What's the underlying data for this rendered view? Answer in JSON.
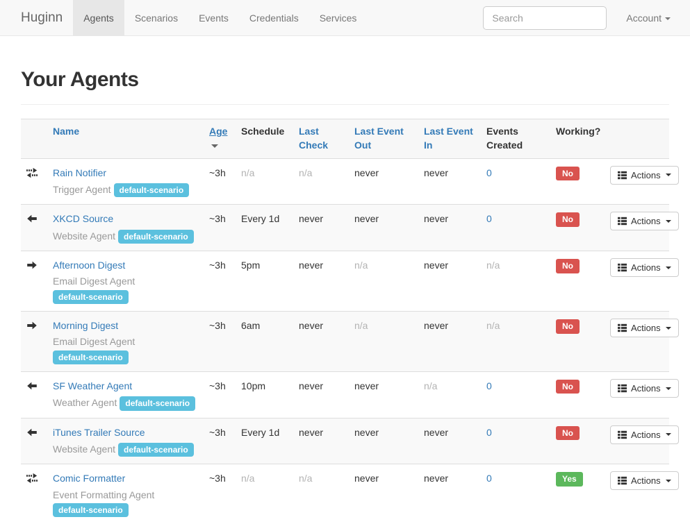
{
  "navbar": {
    "brand": "Huginn",
    "items": [
      {
        "label": "Agents",
        "active": true
      },
      {
        "label": "Scenarios",
        "active": false
      },
      {
        "label": "Events",
        "active": false
      },
      {
        "label": "Credentials",
        "active": false
      },
      {
        "label": "Services",
        "active": false
      }
    ],
    "search_placeholder": "Search",
    "account_label": "Account"
  },
  "page": {
    "title": "Your Agents"
  },
  "colors": {
    "link": "#337ab7",
    "badge_info": "#5bc0de",
    "label_danger": "#d9534f",
    "label_success": "#5cb85c",
    "stripe": "#f9f9f9",
    "muted_text": "#b3b3b3"
  },
  "table": {
    "headers": [
      {
        "label": "Name",
        "style": "link",
        "sorted": false
      },
      {
        "label": "Age",
        "style": "link",
        "sorted": true
      },
      {
        "label": "Schedule",
        "style": "plain",
        "sorted": false
      },
      {
        "label": "Last Check",
        "style": "link",
        "sorted": false
      },
      {
        "label": "Last Event Out",
        "style": "link",
        "sorted": false
      },
      {
        "label": "Last Event In",
        "style": "link",
        "sorted": false
      },
      {
        "label": "Events Created",
        "style": "plain",
        "sorted": false
      },
      {
        "label": "Working?",
        "style": "plain",
        "sorted": false
      }
    ],
    "actions_label": "Actions",
    "rows": [
      {
        "icon": "exchange",
        "name": "Rain Notifier",
        "type": "Trigger Agent",
        "scenario": "default-scenario",
        "age": "~3h",
        "schedule": {
          "text": "n/a",
          "muted": true
        },
        "last_check": {
          "text": "n/a",
          "muted": true
        },
        "last_event_out": {
          "text": "never",
          "muted": false
        },
        "last_event_in": {
          "text": "never",
          "muted": false
        },
        "events": {
          "text": "0",
          "link": true,
          "muted": false
        },
        "working": {
          "text": "No",
          "status": "danger"
        }
      },
      {
        "icon": "arrow-left",
        "name": "XKCD Source",
        "type": "Website Agent",
        "scenario": "default-scenario",
        "age": "~3h",
        "schedule": {
          "text": "Every 1d",
          "muted": false
        },
        "last_check": {
          "text": "never",
          "muted": false
        },
        "last_event_out": {
          "text": "never",
          "muted": false
        },
        "last_event_in": {
          "text": "never",
          "muted": false
        },
        "events": {
          "text": "0",
          "link": true,
          "muted": false
        },
        "working": {
          "text": "No",
          "status": "danger"
        }
      },
      {
        "icon": "arrow-right",
        "name": "Afternoon Digest",
        "type": "Email Digest Agent",
        "scenario": "default-scenario",
        "age": "~3h",
        "schedule": {
          "text": "5pm",
          "muted": false
        },
        "last_check": {
          "text": "never",
          "muted": false
        },
        "last_event_out": {
          "text": "n/a",
          "muted": true
        },
        "last_event_in": {
          "text": "never",
          "muted": false
        },
        "events": {
          "text": "n/a",
          "link": false,
          "muted": true
        },
        "working": {
          "text": "No",
          "status": "danger"
        }
      },
      {
        "icon": "arrow-right",
        "name": "Morning Digest",
        "type": "Email Digest Agent",
        "scenario": "default-scenario",
        "age": "~3h",
        "schedule": {
          "text": "6am",
          "muted": false
        },
        "last_check": {
          "text": "never",
          "muted": false
        },
        "last_event_out": {
          "text": "n/a",
          "muted": true
        },
        "last_event_in": {
          "text": "never",
          "muted": false
        },
        "events": {
          "text": "n/a",
          "link": false,
          "muted": true
        },
        "working": {
          "text": "No",
          "status": "danger"
        }
      },
      {
        "icon": "arrow-left",
        "name": "SF Weather Agent",
        "type": "Weather Agent",
        "scenario": "default-scenario",
        "age": "~3h",
        "schedule": {
          "text": "10pm",
          "muted": false
        },
        "last_check": {
          "text": "never",
          "muted": false
        },
        "last_event_out": {
          "text": "never",
          "muted": false
        },
        "last_event_in": {
          "text": "n/a",
          "muted": true
        },
        "events": {
          "text": "0",
          "link": true,
          "muted": false
        },
        "working": {
          "text": "No",
          "status": "danger"
        }
      },
      {
        "icon": "arrow-left",
        "name": "iTunes Trailer Source",
        "type": "Website Agent",
        "scenario": "default-scenario",
        "age": "~3h",
        "schedule": {
          "text": "Every 1d",
          "muted": false
        },
        "last_check": {
          "text": "never",
          "muted": false
        },
        "last_event_out": {
          "text": "never",
          "muted": false
        },
        "last_event_in": {
          "text": "never",
          "muted": false
        },
        "events": {
          "text": "0",
          "link": true,
          "muted": false
        },
        "working": {
          "text": "No",
          "status": "danger"
        }
      },
      {
        "icon": "exchange",
        "name": "Comic Formatter",
        "type": "Event Formatting Agent",
        "scenario": "default-scenario",
        "age": "~3h",
        "schedule": {
          "text": "n/a",
          "muted": true
        },
        "last_check": {
          "text": "n/a",
          "muted": true
        },
        "last_event_out": {
          "text": "never",
          "muted": false
        },
        "last_event_in": {
          "text": "never",
          "muted": false
        },
        "events": {
          "text": "0",
          "link": true,
          "muted": false
        },
        "working": {
          "text": "Yes",
          "status": "success"
        }
      }
    ]
  }
}
